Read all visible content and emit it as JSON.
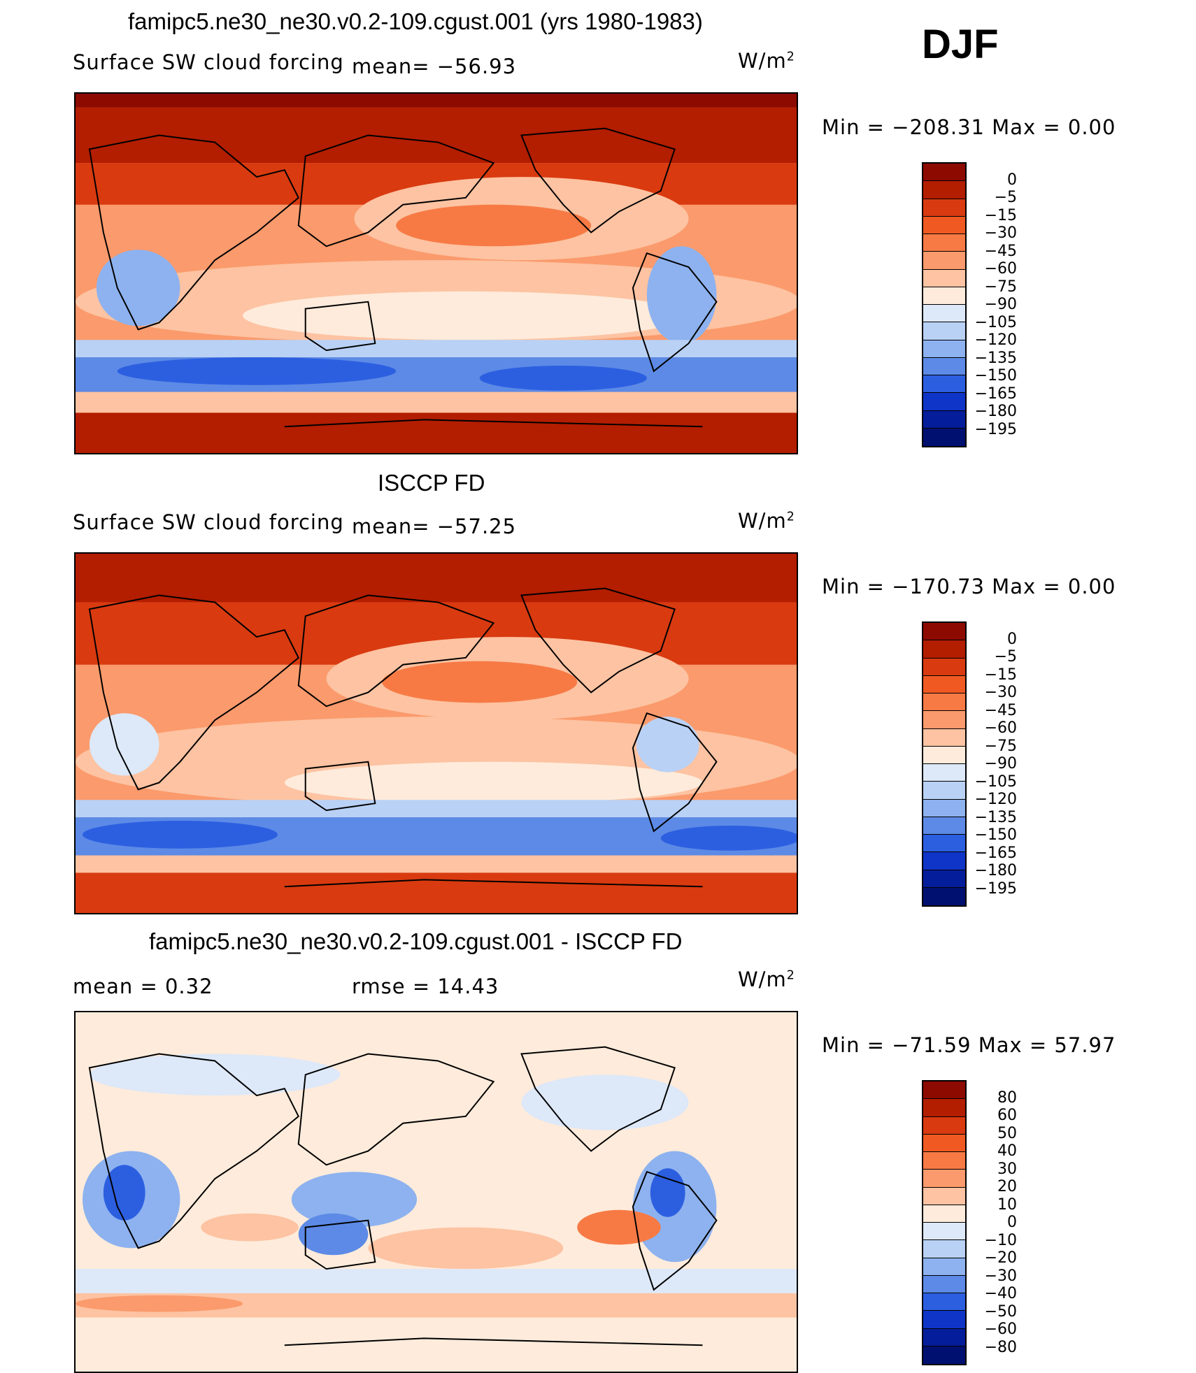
{
  "season": "DJF",
  "panels": [
    {
      "title": "famipc5.ne30_ne30.v0.2-109.cgust.001 (yrs 1980-1983)",
      "left_label": "Surface SW cloud forcing",
      "mean_label": "mean= −56.93",
      "units": "W/m",
      "units_sup": "2",
      "minmax": "Min  =  −208.31  Max  =      0.00",
      "levels": [
        "0",
        "−5",
        "−15",
        "−30",
        "−45",
        "−60",
        "−75",
        "−90",
        "−105",
        "−120",
        "−135",
        "−150",
        "−165",
        "−180",
        "−195"
      ]
    },
    {
      "title": "ISCCP FD",
      "left_label": "Surface SW cloud forcing",
      "mean_label": "mean= −57.25",
      "units": "W/m",
      "units_sup": "2",
      "minmax": "Min  =  −170.73  Max  =      0.00",
      "levels": [
        "0",
        "−5",
        "−15",
        "−30",
        "−45",
        "−60",
        "−75",
        "−90",
        "−105",
        "−120",
        "−135",
        "−150",
        "−165",
        "−180",
        "−195"
      ]
    },
    {
      "title": "famipc5.ne30_ne30.v0.2-109.cgust.001 - ISCCP FD",
      "left_label": "mean  =     0.32",
      "mean_label": "rmse  =    14.43",
      "units": "W/m",
      "units_sup": "2",
      "minmax": "Min  =  −71.59  Max  =    57.97",
      "levels": [
        "80",
        "60",
        "50",
        "40",
        "30",
        "20",
        "10",
        "0",
        "−10",
        "−20",
        "−30",
        "−40",
        "−50",
        "−60",
        "−80"
      ]
    }
  ],
  "colors": {
    "scale": [
      "#8c0a00",
      "#b31d00",
      "#d93a10",
      "#f05a22",
      "#f77a45",
      "#fb9a6c",
      "#fdc3a2",
      "#feebdb",
      "#dde8f8",
      "#b9d1f5",
      "#8db2ef",
      "#5c8ae6",
      "#2c5fe0",
      "#0f35c8",
      "#041d9a",
      "#001070"
    ]
  }
}
